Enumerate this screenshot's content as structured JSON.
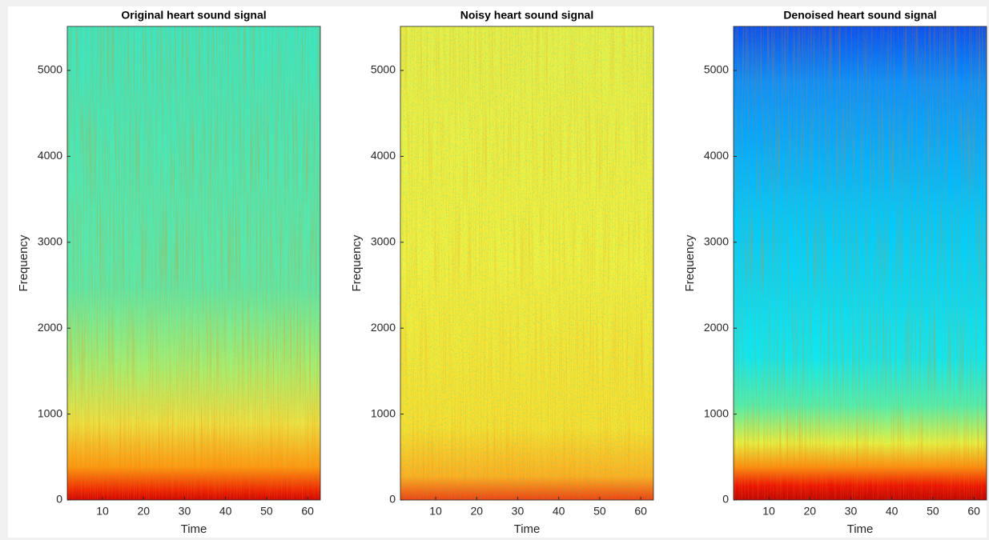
{
  "chart_data": [
    {
      "type": "spectrogram",
      "title": "Original heart sound signal",
      "xlabel": "Time",
      "ylabel": "Frequency",
      "xlim": [
        1.4,
        63.1
      ],
      "xticks": [
        10,
        20,
        30,
        40,
        50,
        60
      ],
      "ylim": [
        0,
        5512.5
      ],
      "yticks": [
        0,
        1000,
        2000,
        3000,
        4000,
        5000
      ]
    },
    {
      "type": "spectrogram",
      "title": "Noisy heart sound signal",
      "xlabel": "Time",
      "ylabel": "Frequency",
      "xlim": [
        1.4,
        63.1
      ],
      "xticks": [
        10,
        20,
        30,
        40,
        50,
        60
      ],
      "ylim": [
        0,
        5512.5
      ],
      "yticks": [
        0,
        1000,
        2000,
        3000,
        4000,
        5000
      ]
    },
    {
      "type": "spectrogram",
      "title": "Denoised heart sound signal",
      "xlabel": "Time",
      "ylabel": "Frequency",
      "xlim": [
        1.4,
        63.1
      ],
      "xticks": [
        10,
        20,
        30,
        40,
        50,
        60
      ],
      "ylim": [
        0,
        5512.5
      ],
      "yticks": [
        0,
        1000,
        2000,
        3000,
        4000,
        5000
      ]
    }
  ]
}
